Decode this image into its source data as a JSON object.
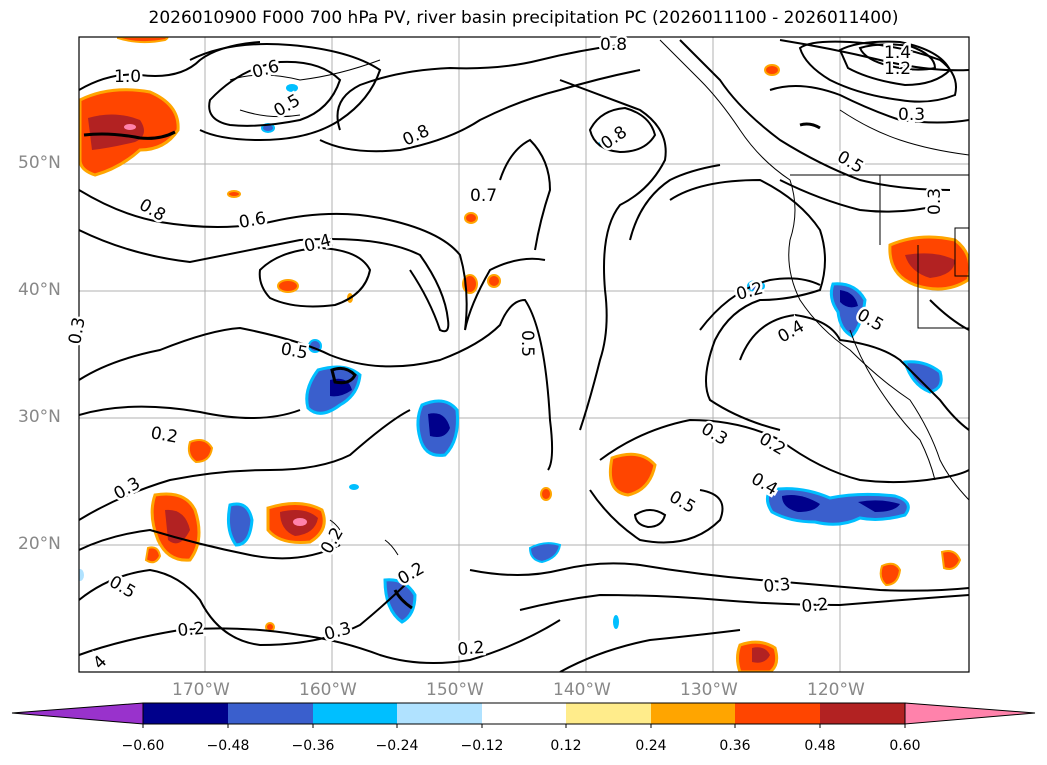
{
  "title": "2026010900 F000 700 hPa PV, river basin precipitation PC (2026011100 - 2026011400)",
  "lat_labels": [
    "50°N",
    "40°N",
    "30°N",
    "20°N"
  ],
  "lon_labels": [
    "170°W",
    "160°W",
    "150°W",
    "140°W",
    "130°W",
    "120°W"
  ],
  "colorbar": {
    "ticks": [
      "−0.60",
      "−0.48",
      "−0.36",
      "−0.24",
      "−0.12",
      "0.12",
      "0.24",
      "0.36",
      "0.48",
      "0.60"
    ],
    "colors": [
      "#9932CC",
      "#00008B",
      "#3A5FCD",
      "#00BFFF",
      "#B0E2FF",
      "#FFFFFF",
      "#FFEC8B",
      "#FFA500",
      "#FF4500",
      "#B22222",
      "#FF82AB"
    ]
  },
  "contour_labels": [
    "1.4",
    "1.2",
    "1.0",
    "0.6",
    "0.5",
    "0.8",
    "0.7",
    "0.8",
    "0.8",
    "0.5",
    "0.3",
    "0.8",
    "0.6",
    "0.4",
    "0.3",
    "0.5",
    "0.5",
    "0.2",
    "0.4",
    "0.5",
    "0.2",
    "0.3",
    "0.2",
    "0.4",
    "0.3",
    "0.5",
    "0.2",
    "0.2",
    "0.5",
    "0.3",
    "0.2",
    "0.2",
    "0.3",
    "0.2",
    "0.3",
    "4"
  ]
}
